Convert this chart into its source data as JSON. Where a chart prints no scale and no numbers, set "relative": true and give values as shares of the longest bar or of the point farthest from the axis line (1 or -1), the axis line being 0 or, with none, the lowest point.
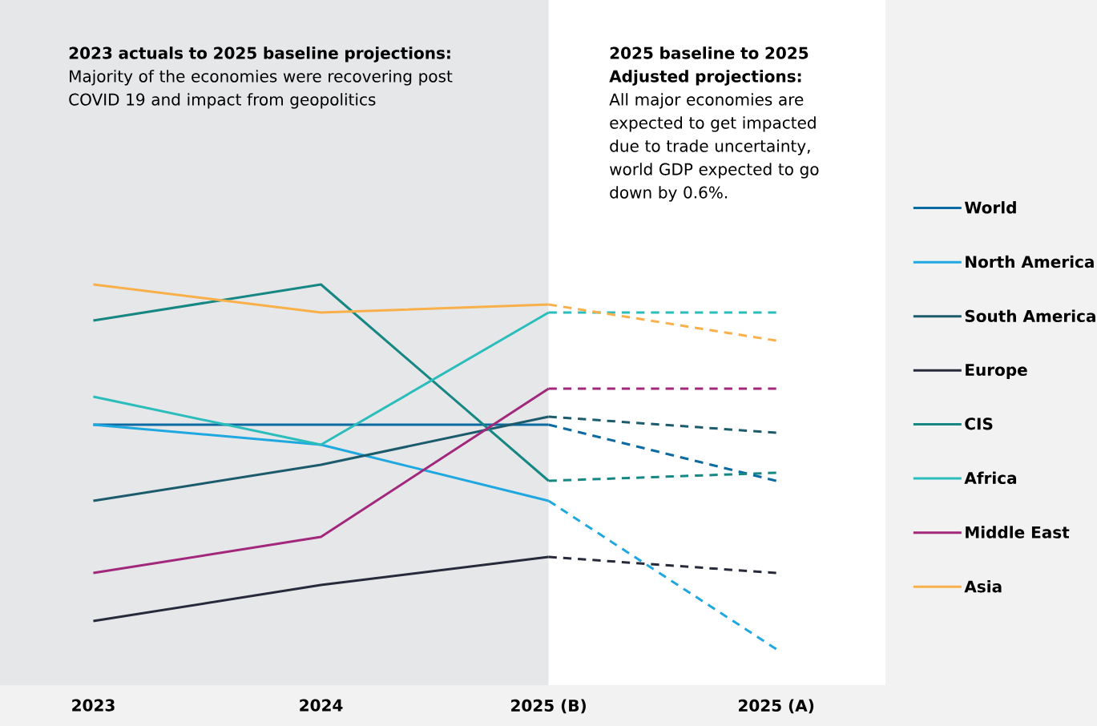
{
  "chart_data": {
    "type": "line",
    "relative": true,
    "categories": [
      "2023",
      "2024",
      "2025 (B)",
      "2025 (A)"
    ],
    "series": [
      {
        "name": "World",
        "color": "#0b6aa2",
        "values": [
          0.65,
          0.65,
          0.65,
          null
        ]
      },
      {
        "name": "North America",
        "color": "#1ea8df",
        "values": [
          0.65,
          0.6,
          0.46,
          null
        ]
      },
      {
        "name": "South America",
        "color": "#1b5b6c",
        "values": [
          0.46,
          0.55,
          0.67,
          null
        ]
      },
      {
        "name": "Europe",
        "color": "#272a3a",
        "values": [
          0.16,
          0.25,
          0.32,
          null
        ]
      },
      {
        "name": "CIS",
        "color": "#178783",
        "values": [
          0.91,
          1.0,
          0.51,
          null
        ]
      },
      {
        "name": "Africa",
        "color": "#2bbdbb",
        "values": [
          0.72,
          0.6,
          0.93,
          null
        ]
      },
      {
        "name": "Middle East",
        "color": "#a1287b",
        "values": [
          0.28,
          0.37,
          0.74,
          null
        ]
      },
      {
        "name": "Asia",
        "color": "#f9b04a",
        "values": [
          1.0,
          0.93,
          0.95,
          null
        ]
      },
      {
        "color": "#0b6aa2",
        "line_style": "dashed",
        "values": [
          null,
          null,
          0.65,
          0.51
        ]
      },
      {
        "color": "#1ea8df",
        "line_style": "dashed",
        "values": [
          null,
          null,
          0.46,
          0.09
        ]
      },
      {
        "color": "#1b5b6c",
        "line_style": "dashed",
        "values": [
          null,
          null,
          0.67,
          0.63
        ]
      },
      {
        "color": "#272a3a",
        "line_style": "dashed",
        "values": [
          null,
          null,
          0.32,
          0.28
        ]
      },
      {
        "color": "#178783",
        "line_style": "dashed",
        "values": [
          null,
          null,
          0.51,
          0.53
        ]
      },
      {
        "color": "#2bbdbb",
        "line_style": "dashed",
        "values": [
          null,
          null,
          0.93,
          0.93
        ]
      },
      {
        "color": "#a1287b",
        "line_style": "dashed",
        "values": [
          null,
          null,
          0.74,
          0.74
        ]
      },
      {
        "color": "#f9b04a",
        "line_style": "dashed",
        "values": [
          null,
          null,
          0.95,
          0.86
        ]
      }
    ],
    "line_style": "solid",
    "bands": [
      {
        "axis": "x",
        "from": "2023",
        "to": "2025 (B)",
        "color": "#e6e7e9"
      }
    ],
    "legend": "right",
    "annotations": [
      "2023 actuals to 2025 baseline projections:",
      "Majority of the economies were recovering post COVID 19 and impact from geopolitics",
      "2025 baseline to 2025 Adjusted projections:",
      "All major economies are expected to get impacted due to trade uncertainty, world GDP expected to go down by 0.6%."
    ]
  }
}
